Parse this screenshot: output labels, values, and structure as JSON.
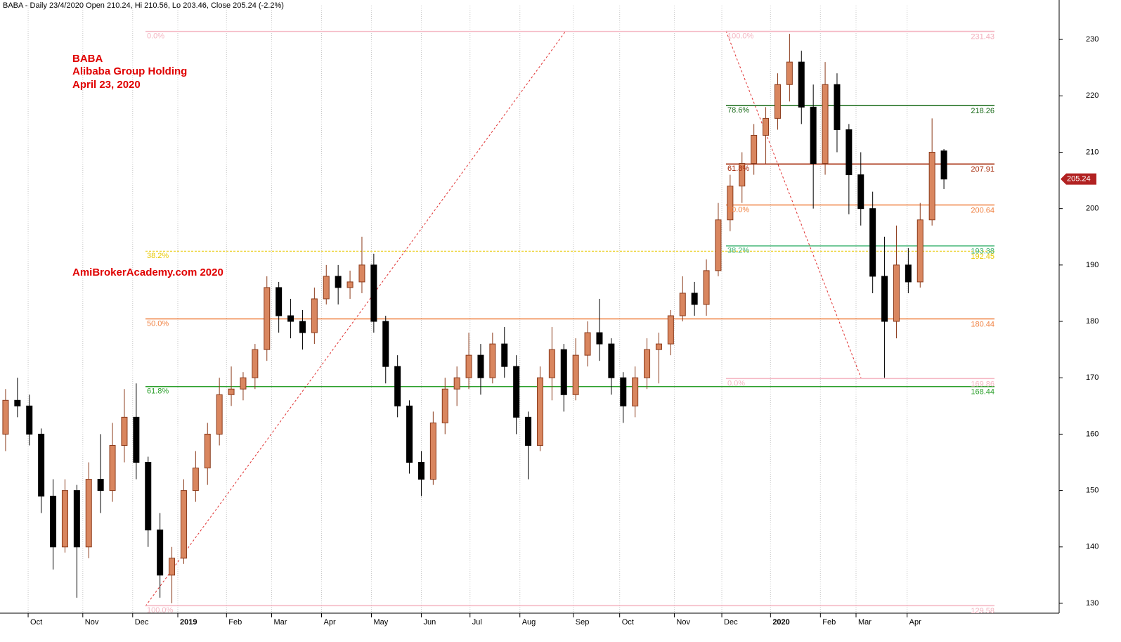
{
  "chart_data": {
    "type": "candlestick",
    "header": "BABA - Daily 23/4/2020 Open 210.24, Hi 210.56, Lo 203.46, Close 205.24 (-2.2%)",
    "annotations": [
      "BABA",
      "Alibaba Group Holding",
      "April 23, 2020"
    ],
    "watermark": "AmiBrokerAcademy.com  2020",
    "up_color": "#d9865f",
    "down_color": "#000000",
    "open": [
      160,
      166,
      165,
      160,
      149,
      140,
      150,
      140,
      152,
      150,
      158,
      163,
      155,
      143,
      135,
      138,
      150,
      154,
      160,
      167,
      168,
      170,
      175,
      186,
      181,
      180,
      178,
      184,
      188,
      186,
      187,
      190,
      180,
      172,
      165,
      155,
      152,
      162,
      168,
      170,
      174,
      170,
      176,
      172,
      163,
      158,
      170,
      175,
      167,
      174,
      178,
      176,
      170,
      165,
      170,
      175,
      176,
      181,
      185,
      183,
      189,
      198,
      204,
      208,
      213,
      216,
      222,
      226,
      218,
      208,
      222,
      214,
      206,
      200,
      188,
      180,
      190,
      187,
      198,
      210.24
    ],
    "high": [
      168,
      170,
      167,
      161,
      152,
      152,
      151,
      155,
      160,
      162,
      168,
      169,
      156,
      146,
      140,
      152,
      157,
      162,
      170,
      172,
      171,
      176,
      188,
      187,
      184,
      182,
      186,
      190,
      190,
      189,
      195,
      192,
      181,
      174,
      166,
      157,
      164,
      170,
      172,
      178,
      176,
      178,
      179,
      174,
      164,
      172,
      179,
      176,
      177,
      180,
      184,
      177,
      171,
      172,
      177,
      178,
      182,
      188,
      187,
      191,
      201,
      206,
      210,
      215,
      218,
      224,
      231,
      228,
      222,
      226,
      224,
      215,
      210,
      203,
      195,
      197,
      193,
      201,
      216,
      210.56
    ],
    "low": [
      157,
      163,
      158,
      146,
      136,
      139,
      131,
      138,
      146,
      148,
      155,
      152,
      140,
      131,
      130,
      137,
      148,
      151,
      158,
      165,
      166,
      168,
      173,
      178,
      177,
      175,
      176,
      183,
      183,
      184,
      185,
      178,
      169,
      163,
      153,
      149,
      151,
      160,
      165,
      168,
      167,
      169,
      170,
      160,
      152,
      157,
      166,
      164,
      166,
      172,
      173,
      167,
      162,
      163,
      168,
      169,
      174,
      180,
      181,
      181,
      188,
      196,
      201,
      206,
      208,
      214,
      219,
      215,
      200,
      206,
      210,
      199,
      197,
      185,
      170,
      177,
      185,
      186,
      197,
      203.46
    ],
    "close": [
      166,
      165,
      160,
      149,
      140,
      150,
      140,
      152,
      150,
      158,
      163,
      155,
      143,
      135,
      138,
      150,
      154,
      160,
      167,
      168,
      170,
      175,
      186,
      181,
      180,
      178,
      184,
      188,
      186,
      187,
      190,
      180,
      172,
      165,
      155,
      152,
      162,
      168,
      170,
      174,
      170,
      176,
      172,
      163,
      158,
      170,
      175,
      167,
      174,
      178,
      176,
      170,
      165,
      170,
      175,
      176,
      181,
      185,
      183,
      189,
      198,
      204,
      208,
      213,
      216,
      222,
      226,
      218,
      208,
      222,
      214,
      206,
      200,
      188,
      180,
      190,
      187,
      198,
      210,
      205.24
    ],
    "xlim": [
      -0.47,
      88.7
    ],
    "xticks": [
      {
        "value": 1.9,
        "label": "Oct"
      },
      {
        "value": 6.5,
        "label": "Nov"
      },
      {
        "value": 10.7,
        "label": "Dec"
      },
      {
        "value": 14.5,
        "label": "2019"
      },
      {
        "value": 18.6,
        "label": "Feb"
      },
      {
        "value": 22.4,
        "label": "Mar"
      },
      {
        "value": 26.6,
        "label": "Apr"
      },
      {
        "value": 30.8,
        "label": "May"
      },
      {
        "value": 35.0,
        "label": "Jun"
      },
      {
        "value": 39.1,
        "label": "Jul"
      },
      {
        "value": 43.3,
        "label": "Aug"
      },
      {
        "value": 47.8,
        "label": "Sep"
      },
      {
        "value": 51.7,
        "label": "Oct"
      },
      {
        "value": 56.3,
        "label": "Nov"
      },
      {
        "value": 60.3,
        "label": "Dec"
      },
      {
        "value": 64.4,
        "label": "2020"
      },
      {
        "value": 68.6,
        "label": "Feb"
      },
      {
        "value": 71.6,
        "label": "Mar"
      },
      {
        "value": 75.9,
        "label": "Apr"
      }
    ],
    "ylim": [
      128.25,
      236
    ],
    "yticks": [
      130,
      140,
      150,
      160,
      170,
      180,
      190,
      200,
      210,
      220,
      230
    ],
    "grid": true,
    "fib_sets": [
      {
        "levels": [
          {
            "label": "0.0%",
            "value": 231.43,
            "color": "#f4b6c2"
          },
          {
            "label": "38.2%",
            "value": 192.45,
            "color": "#e8c800",
            "dashed": true
          },
          {
            "label": "50.0%",
            "value": 180.44,
            "color": "#f08040"
          },
          {
            "label": "61.8%",
            "value": 168.44,
            "color": "#2ca02c"
          },
          {
            "label": "100.0%",
            "value": 129.58,
            "color": "#f4b6c2"
          }
        ]
      },
      {
        "levels": [
          {
            "label": "100.0%",
            "value": 231.43,
            "color": "#f4b6c2"
          },
          {
            "label": "78.6%",
            "value": 218.26,
            "color": "#1a6b1a"
          },
          {
            "label": "61.8%",
            "value": 207.91,
            "color": "#a52a0a"
          },
          {
            "label": "50.0%",
            "value": 200.64,
            "color": "#f08040"
          },
          {
            "label": "38.2%",
            "value": 193.38,
            "color": "#3cb371"
          },
          {
            "label": "0.0%",
            "value": 169.86,
            "color": "#f4b6c2"
          }
        ]
      }
    ]
  }
}
